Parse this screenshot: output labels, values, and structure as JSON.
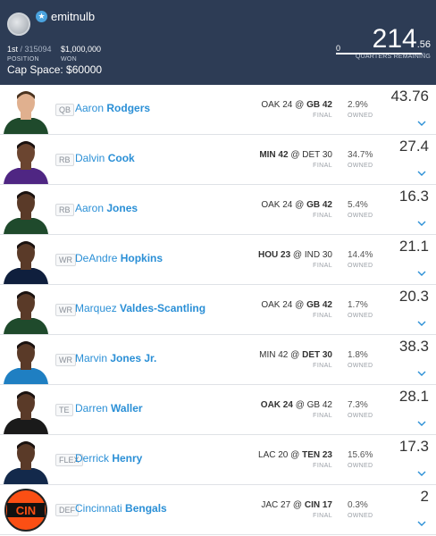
{
  "header": {
    "username": "emitnulb",
    "position_rank": "1st",
    "position_total": "/ 315094",
    "position_label": "POSITION",
    "won_amount": "$1,000,000",
    "won_label": "WON",
    "cap_space": "Cap Space: $60000",
    "score_zero": "0",
    "score_main": "214",
    "score_decimal": ".56",
    "quarters_remaining": "QUARTERS REMAINING",
    "quarters_progress": 0.96
  },
  "labels": {
    "final": "FINAL",
    "owned": "OWNED"
  },
  "players": [
    {
      "pos": "QB",
      "first": "Aaron",
      "last": "Rodgers",
      "away": "OAK 24",
      "home": "GB 42",
      "bold": "home",
      "owned": "2.9%",
      "points": "43.76",
      "jersey": "#1f4a2c",
      "skin": "#e0b08f",
      "hair": "#4a3320"
    },
    {
      "pos": "RB",
      "first": "Dalvin",
      "last": "Cook",
      "away": "MIN 42",
      "home": "DET 30",
      "bold": "away",
      "owned": "34.7%",
      "points": "27.4",
      "jersey": "#4f2683",
      "skin": "#6b4530",
      "hair": "#1a1210"
    },
    {
      "pos": "RB",
      "first": "Aaron",
      "last": "Jones",
      "away": "OAK 24",
      "home": "GB 42",
      "bold": "home",
      "owned": "5.4%",
      "points": "16.3",
      "jersey": "#1f4a2c",
      "skin": "#5a3a28",
      "hair": "#1a1210"
    },
    {
      "pos": "WR",
      "first": "DeAndre",
      "last": "Hopkins",
      "away": "HOU 23",
      "home": "IND 30",
      "bold": "away",
      "owned": "14.4%",
      "points": "21.1",
      "jersey": "#0f1f3d",
      "skin": "#5a3a28",
      "hair": "#1a1210"
    },
    {
      "pos": "WR",
      "first": "Marquez",
      "last": "Valdes-Scantling",
      "away": "OAK 24",
      "home": "GB 42",
      "bold": "home",
      "owned": "1.7%",
      "points": "20.3",
      "jersey": "#1f4a2c",
      "skin": "#5a3a28",
      "hair": "#1a1210"
    },
    {
      "pos": "WR",
      "first": "Marvin",
      "last": "Jones Jr.",
      "away": "MIN 42",
      "home": "DET 30",
      "bold": "home",
      "owned": "1.8%",
      "points": "38.3",
      "jersey": "#1f7fc2",
      "skin": "#5a3a28",
      "hair": "#1a1210"
    },
    {
      "pos": "TE",
      "first": "Darren",
      "last": "Waller",
      "away": "OAK 24",
      "home": "GB 42",
      "bold": "away",
      "owned": "7.3%",
      "points": "28.1",
      "jersey": "#1a1a1a",
      "skin": "#5a3a28",
      "hair": "#1a1210"
    },
    {
      "pos": "FLEX",
      "first": "Derrick",
      "last": "Henry",
      "away": "LAC 20",
      "home": "TEN 23",
      "bold": "home",
      "owned": "15.6%",
      "points": "17.3",
      "jersey": "#13294b",
      "skin": "#5a3a28",
      "hair": "#1a1210"
    },
    {
      "pos": "DEF",
      "first": "Cincinnati",
      "last": "Bengals",
      "away": "JAC 27",
      "home": "CIN 17",
      "bold": "home",
      "owned": "0.3%",
      "points": "2",
      "logo_text": "CIN",
      "logo": true
    }
  ]
}
